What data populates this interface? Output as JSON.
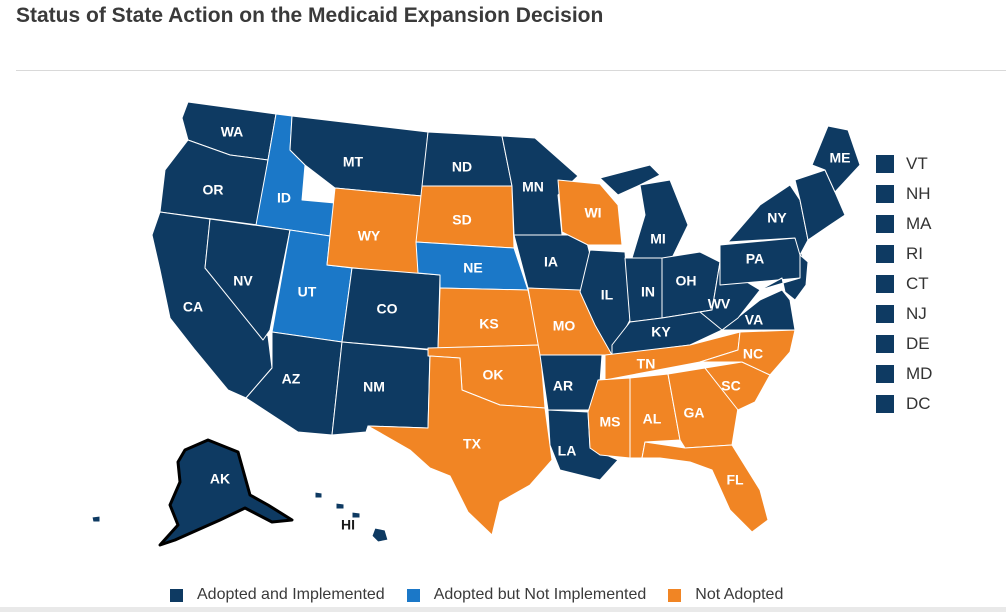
{
  "title": "Status of State Action on the Medicaid Expansion Decision",
  "colors": {
    "adopted_implemented": "#0e3a62",
    "adopted_not_implemented": "#1b78c8",
    "not_adopted": "#f18524"
  },
  "legend": {
    "adopted_implemented": "Adopted and Implemented",
    "adopted_not_implemented": "Adopted but Not Implemented",
    "not_adopted": "Not Adopted"
  },
  "states": {
    "WA": {
      "label": "WA",
      "status": "adopted_implemented"
    },
    "OR": {
      "label": "OR",
      "status": "adopted_implemented"
    },
    "CA": {
      "label": "CA",
      "status": "adopted_implemented"
    },
    "ID": {
      "label": "ID",
      "status": "adopted_not_implemented"
    },
    "NV": {
      "label": "NV",
      "status": "adopted_implemented"
    },
    "UT": {
      "label": "UT",
      "status": "adopted_not_implemented"
    },
    "AZ": {
      "label": "AZ",
      "status": "adopted_implemented"
    },
    "MT": {
      "label": "MT",
      "status": "adopted_implemented"
    },
    "WY": {
      "label": "WY",
      "status": "not_adopted"
    },
    "CO": {
      "label": "CO",
      "status": "adopted_implemented"
    },
    "NM": {
      "label": "NM",
      "status": "adopted_implemented"
    },
    "ND": {
      "label": "ND",
      "status": "adopted_implemented"
    },
    "SD": {
      "label": "SD",
      "status": "not_adopted"
    },
    "NE": {
      "label": "NE",
      "status": "adopted_not_implemented"
    },
    "KS": {
      "label": "KS",
      "status": "not_adopted"
    },
    "OK": {
      "label": "OK",
      "status": "not_adopted"
    },
    "TX": {
      "label": "TX",
      "status": "not_adopted"
    },
    "MN": {
      "label": "MN",
      "status": "adopted_implemented"
    },
    "IA": {
      "label": "IA",
      "status": "adopted_implemented"
    },
    "MO": {
      "label": "MO",
      "status": "not_adopted"
    },
    "AR": {
      "label": "AR",
      "status": "adopted_implemented"
    },
    "LA": {
      "label": "LA",
      "status": "adopted_implemented"
    },
    "WI": {
      "label": "WI",
      "status": "not_adopted"
    },
    "IL": {
      "label": "IL",
      "status": "adopted_implemented"
    },
    "MI": {
      "label": "MI",
      "status": "adopted_implemented"
    },
    "IN": {
      "label": "IN",
      "status": "adopted_implemented"
    },
    "OH": {
      "label": "OH",
      "status": "adopted_implemented"
    },
    "KY": {
      "label": "KY",
      "status": "adopted_implemented"
    },
    "TN": {
      "label": "TN",
      "status": "not_adopted"
    },
    "MS": {
      "label": "MS",
      "status": "not_adopted"
    },
    "AL": {
      "label": "AL",
      "status": "not_adopted"
    },
    "GA": {
      "label": "GA",
      "status": "not_adopted"
    },
    "FL": {
      "label": "FL",
      "status": "not_adopted"
    },
    "SC": {
      "label": "SC",
      "status": "not_adopted"
    },
    "NC": {
      "label": "NC",
      "status": "not_adopted"
    },
    "VA": {
      "label": "VA",
      "status": "adopted_implemented"
    },
    "WV": {
      "label": "WV",
      "status": "adopted_implemented"
    },
    "PA": {
      "label": "PA",
      "status": "adopted_implemented"
    },
    "NY": {
      "label": "NY",
      "status": "adopted_implemented"
    },
    "ME": {
      "label": "ME",
      "status": "adopted_implemented"
    },
    "NEW_ENGLAND": {
      "status": "adopted_implemented"
    },
    "NJ_MD_DE": {
      "status": "adopted_implemented"
    },
    "AK": {
      "label": "AK",
      "status": "adopted_implemented"
    },
    "HI": {
      "label": "HI",
      "status": "adopted_implemented"
    }
  },
  "small_states": [
    {
      "label": "VT",
      "status": "adopted_implemented"
    },
    {
      "label": "NH",
      "status": "adopted_implemented"
    },
    {
      "label": "MA",
      "status": "adopted_implemented"
    },
    {
      "label": "RI",
      "status": "adopted_implemented"
    },
    {
      "label": "CT",
      "status": "adopted_implemented"
    },
    {
      "label": "NJ",
      "status": "adopted_implemented"
    },
    {
      "label": "DE",
      "status": "adopted_implemented"
    },
    {
      "label": "MD",
      "status": "adopted_implemented"
    },
    {
      "label": "DC",
      "status": "adopted_implemented"
    }
  ]
}
